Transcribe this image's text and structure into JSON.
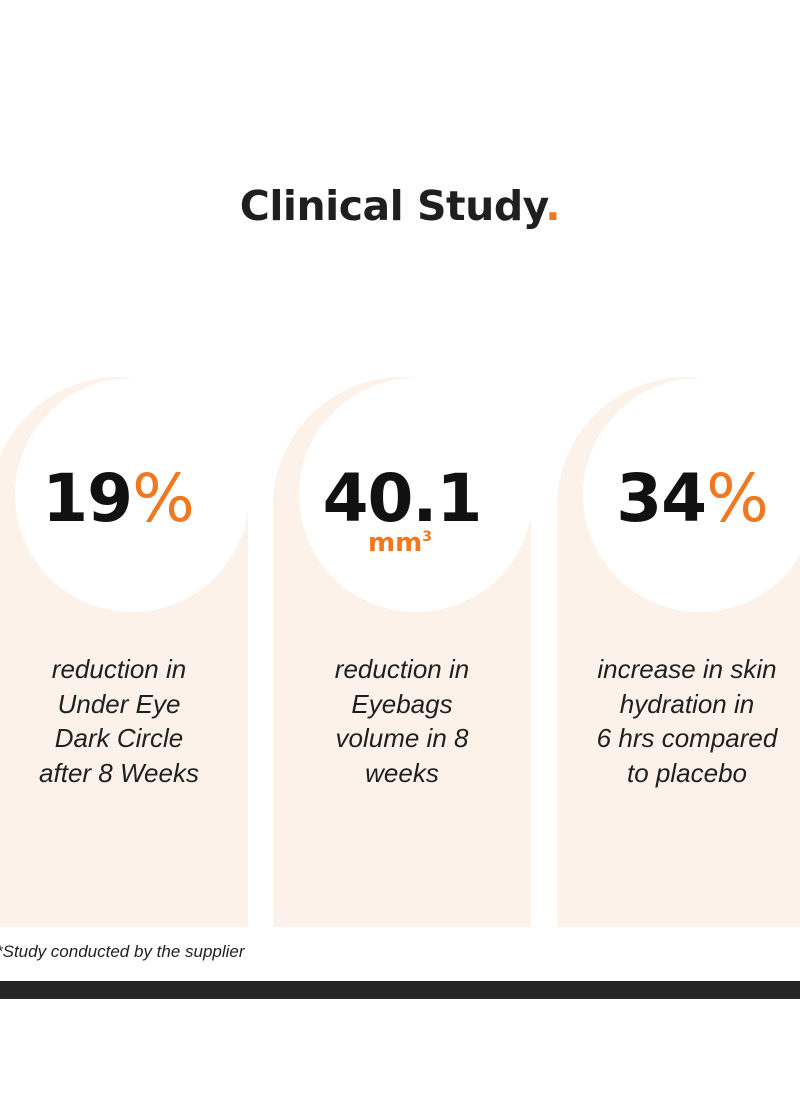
{
  "title": {
    "text": "Clinical Study",
    "dot": "."
  },
  "colors": {
    "accent": "#f07820",
    "card_bg": "#fdf2ea",
    "text": "#1f1f1f",
    "bar": "#252525"
  },
  "stats": [
    {
      "value": "19",
      "unit": "%",
      "lines": [
        "reduction in",
        "Under Eye",
        "Dark Circle",
        "after 8 Weeks"
      ]
    },
    {
      "value": "40.1",
      "unit": "mm",
      "unit_sup": "3",
      "lines": [
        "reduction in",
        "Eyebags",
        "volume in 8",
        "weeks"
      ]
    },
    {
      "value": "34",
      "unit": "%",
      "lines": [
        "increase in skin",
        "hydration in",
        "6 hrs compared",
        "to placebo"
      ]
    }
  ],
  "footnote": "*Study conducted by the supplier"
}
